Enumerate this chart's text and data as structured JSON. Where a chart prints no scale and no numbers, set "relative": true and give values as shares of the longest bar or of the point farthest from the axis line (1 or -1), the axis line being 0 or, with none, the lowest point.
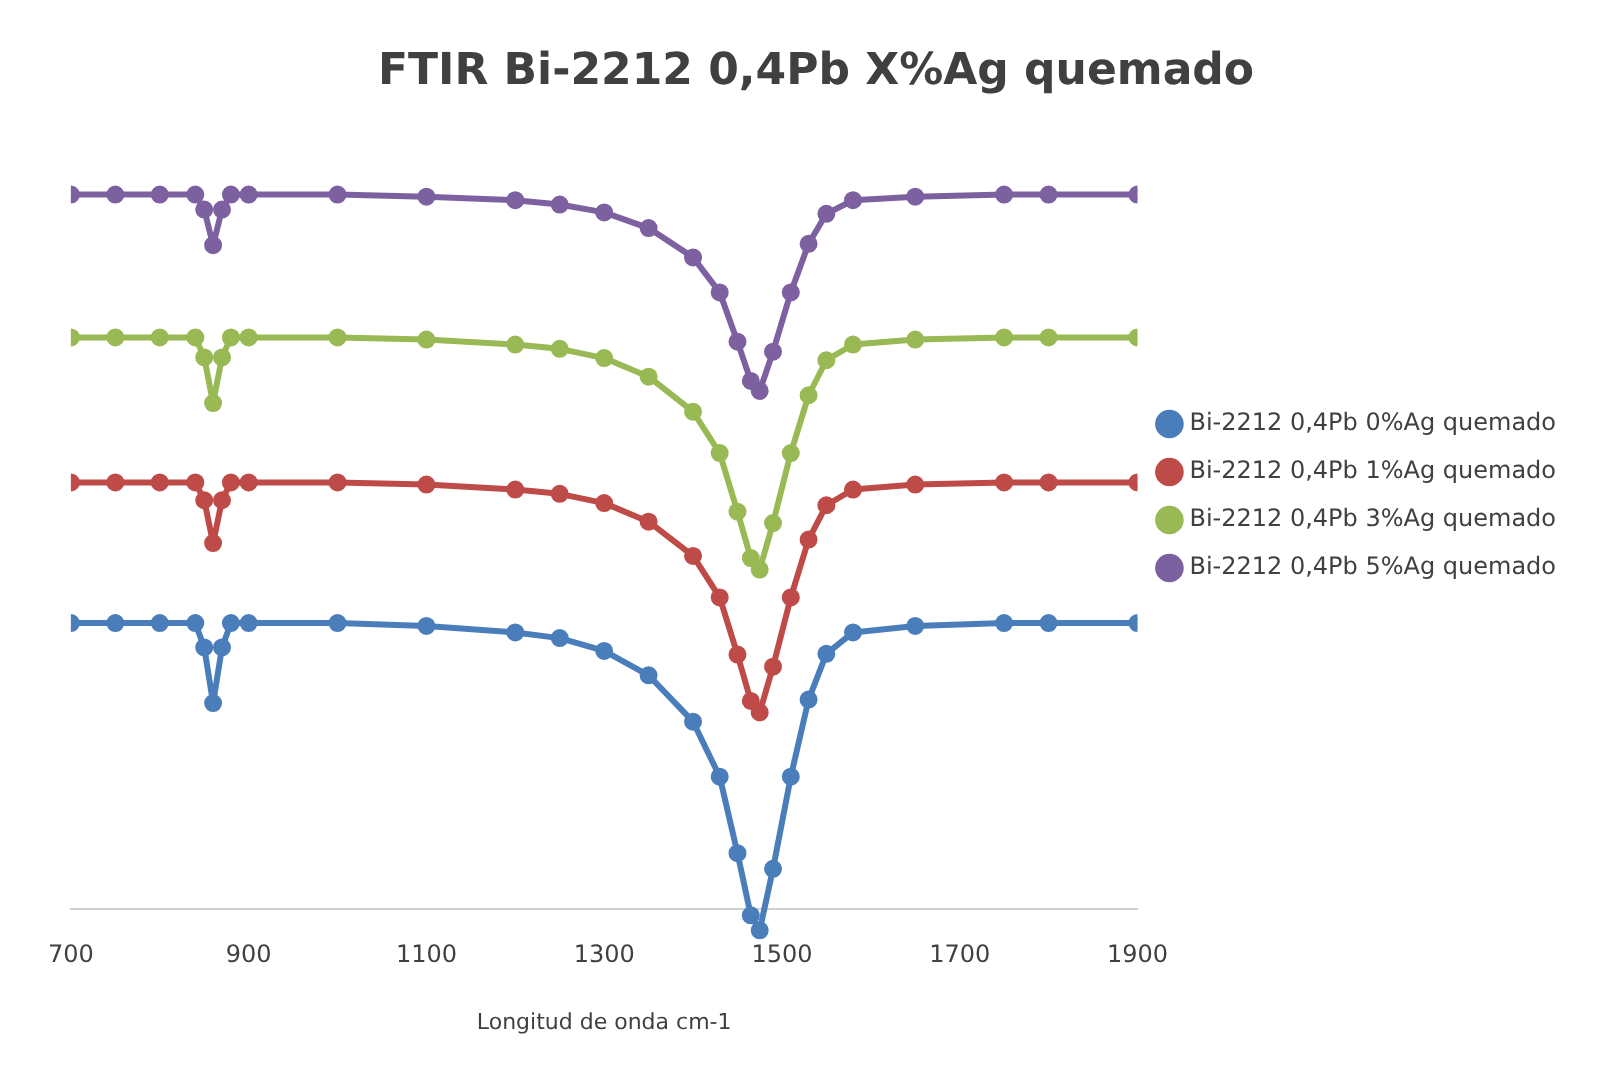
{
  "chart_data": {
    "type": "line",
    "title": "FTIR Bi-2212 0,4Pb X%Ag quemado",
    "xlabel": "Longitud de onda cm-1",
    "relative": true,
    "xlim": [
      700,
      1900
    ],
    "xticks": [
      700,
      900,
      1100,
      1300,
      1500,
      1700,
      1900
    ],
    "grid": false,
    "legend": "right",
    "marker": "circle",
    "line_style": "solid",
    "x": [
      700,
      750,
      800,
      840,
      850,
      860,
      870,
      880,
      900,
      1000,
      1100,
      1200,
      1250,
      1300,
      1350,
      1400,
      1430,
      1450,
      1465,
      1475,
      1490,
      1510,
      1530,
      1550,
      1580,
      1650,
      1750,
      1800,
      1900
    ],
    "series": [
      {
        "name": "Bi-2212 0,4Pb 0%Ag quemado",
        "color": "#4a7ebb",
        "values": [
          0.4,
          0.4,
          0.4,
          0.4,
          0.366,
          0.288,
          0.366,
          0.4,
          0.4,
          0.4,
          0.396,
          0.387,
          0.379,
          0.361,
          0.327,
          0.262,
          0.185,
          0.078,
          -0.009,
          -0.03,
          0.056,
          0.185,
          0.293,
          0.357,
          0.387,
          0.396,
          0.4,
          0.4,
          0.4
        ]
      },
      {
        "name": "Bi-2212 0,4Pb 1%Ag quemado",
        "color": "#be4b48",
        "values": [
          0.597,
          0.597,
          0.597,
          0.597,
          0.572,
          0.512,
          0.572,
          0.597,
          0.597,
          0.597,
          0.594,
          0.587,
          0.581,
          0.568,
          0.542,
          0.494,
          0.436,
          0.356,
          0.291,
          0.275,
          0.339,
          0.436,
          0.517,
          0.565,
          0.587,
          0.594,
          0.597,
          0.597,
          0.597
        ]
      },
      {
        "name": "Bi-2212 0,4Pb 3%Ag quemado",
        "color": "#98b954",
        "values": [
          0.8,
          0.8,
          0.8,
          0.8,
          0.772,
          0.708,
          0.772,
          0.8,
          0.8,
          0.8,
          0.797,
          0.79,
          0.784,
          0.771,
          0.745,
          0.696,
          0.638,
          0.556,
          0.491,
          0.475,
          0.54,
          0.638,
          0.719,
          0.768,
          0.79,
          0.797,
          0.8,
          0.8,
          0.8
        ]
      },
      {
        "name": "Bi-2212 0,4Pb 5%Ag quemado",
        "color": "#7d60a0",
        "values": [
          1,
          1,
          1,
          1,
          0.979,
          0.929,
          0.979,
          1,
          1,
          1,
          0.997,
          0.992,
          0.986,
          0.975,
          0.953,
          0.912,
          0.863,
          0.794,
          0.739,
          0.725,
          0.78,
          0.863,
          0.931,
          0.973,
          0.992,
          0.997,
          1,
          1,
          1
        ]
      }
    ]
  }
}
